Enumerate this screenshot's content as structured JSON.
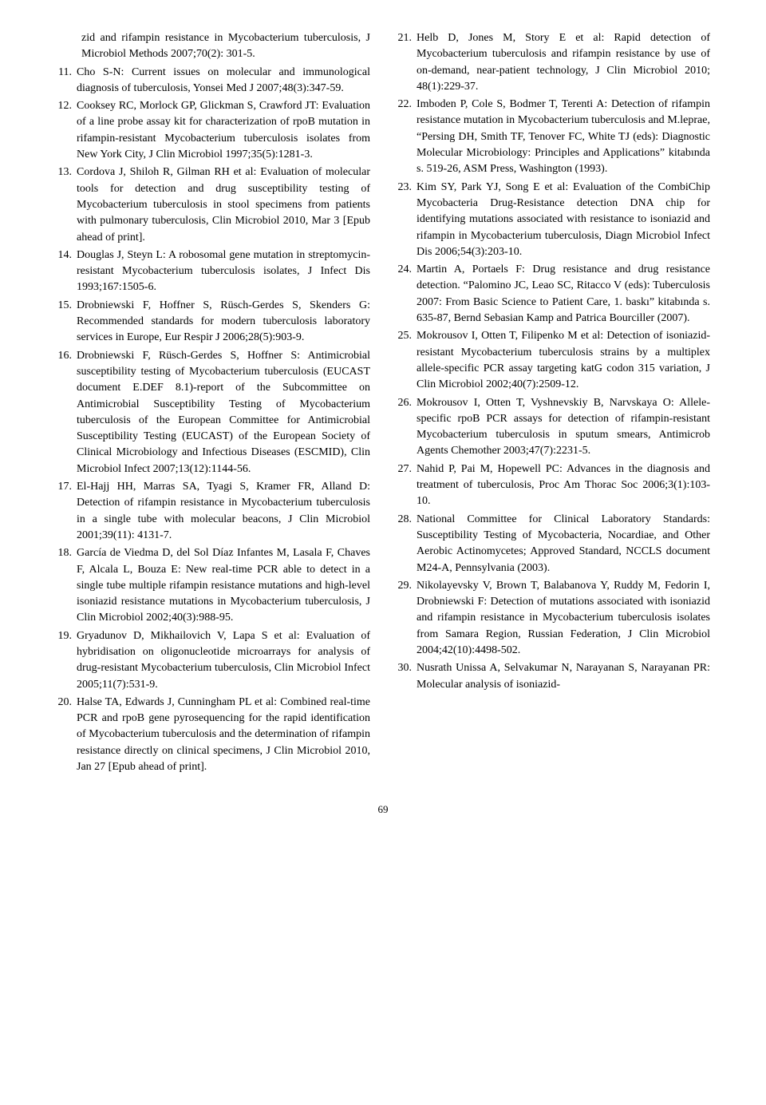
{
  "orphan": "zid and rifampin resistance in Mycobacterium tuberculosis, J Microbiol Methods 2007;70(2): 301-5.",
  "references": [
    {
      "n": "11.",
      "t": "Cho S-N: Current issues on molecular and immunological diagnosis of tuberculosis, Yonsei Med J 2007;48(3):347-59."
    },
    {
      "n": "12.",
      "t": "Cooksey RC, Morlock GP, Glickman S, Crawford JT: Evaluation of a line probe assay kit for characterization of rpoB mutation in rifampin-resistant Mycobacterium tuberculosis isolates from New York City, J Clin Microbiol 1997;35(5):1281-3."
    },
    {
      "n": "13.",
      "t": "Cordova J, Shiloh R, Gilman RH et al: Evaluation of molecular tools for detection and drug susceptibility testing of Mycobacterium tuberculosis in stool specimens from patients with pulmonary tuberculosis, Clin Microbiol 2010, Mar 3 [Epub ahead of print]."
    },
    {
      "n": "14.",
      "t": "Douglas J, Steyn L: A robosomal gene mutation in streptomycin-resistant Mycobacterium tuberculosis isolates, J Infect Dis 1993;167:1505-6."
    },
    {
      "n": "15.",
      "t": "Drobniewski F, Hoffner S, Rüsch-Gerdes S, Skenders G: Recommended standards for modern tuberculosis laboratory services in Europe, Eur Respir J 2006;28(5):903-9."
    },
    {
      "n": "16.",
      "t": "Drobniewski F, Rüsch-Gerdes S, Hoffner S: Antimicrobial susceptibility testing of Mycobacterium tuberculosis (EUCAST document E.DEF 8.1)-report of the Subcommittee on Antimicrobial Susceptibility Testing of Mycobacterium tuberculosis of the European Committee for Antimicrobial Susceptibility Testing (EUCAST) of the European Society of Clinical Microbiology and Infectious Diseases (ESCMID), Clin Microbiol Infect 2007;13(12):1144-56."
    },
    {
      "n": "17.",
      "t": "El-Hajj HH, Marras SA, Tyagi S, Kramer FR, Alland D: Detection of rifampin resistance in Mycobacterium tuberculosis in a single tube with molecular beacons, J Clin Microbiol 2001;39(11): 4131-7."
    },
    {
      "n": "18.",
      "t": "García de Viedma D, del Sol Díaz Infantes M, Lasala F, Chaves F, Alcala L, Bouza E: New real-time PCR able to detect in a single tube multiple rifampin resistance mutations and high-level isoniazid resistance mutations in Mycobacterium tuberculosis, J Clin Microbiol 2002;40(3):988-95."
    },
    {
      "n": "19.",
      "t": "Gryadunov D, Mikhailovich V, Lapa S et al: Evaluation of hybridisation on oligonucleotide microarrays for analysis of drug-resistant Mycobacterium tuberculosis, Clin Microbiol Infect 2005;11(7):531-9."
    },
    {
      "n": "20.",
      "t": "Halse TA, Edwards J, Cunningham PL et al: Combined real-time PCR and rpoB gene pyrosequencing for the rapid identification of Mycobacterium tuberculosis and the determination of rifampin resistance directly on clinical specimens, J Clin Microbiol 2010, Jan 27 [Epub ahead of print]."
    },
    {
      "n": "21.",
      "t": "Helb D, Jones M, Story E et al: Rapid detection of Mycobacterium tuberculosis and rifampin resistance by use of on-demand, near-patient technology, J Clin Microbiol 2010; 48(1):229-37."
    },
    {
      "n": "22.",
      "t": "Imboden P, Cole S, Bodmer T, Terenti A: Detection of rifampin resistance mutation in Mycobacterium tuberculosis and M.leprae, “Persing DH, Smith TF, Tenover FC, White TJ (eds): Diagnostic Molecular Microbiology: Principles and Applications” kitabında s. 519-26, ASM Press, Washington (1993)."
    },
    {
      "n": "23.",
      "t": "Kim SY, Park YJ, Song E et al: Evaluation of the CombiChip Mycobacteria Drug-Resistance detection DNA chip for identifying mutations associated with resistance to isoniazid and rifampin in Mycobacterium tuberculosis, Diagn Microbiol Infect Dis 2006;54(3):203-10."
    },
    {
      "n": "24.",
      "t": "Martin A, Portaels F: Drug resistance and drug resistance detection. “Palomino JC, Leao SC, Ritacco V (eds): Tuberculosis 2007: From Basic Science to Patient Care, 1. baskı” kitabında s. 635-87, Bernd Sebasian Kamp and Patrica Bourciller (2007)."
    },
    {
      "n": "25.",
      "t": "Mokrousov I, Otten T, Filipenko M et al: Detection of isoniazid-resistant Mycobacterium tuberculosis strains by a multiplex allele-specific PCR assay targeting katG codon 315 variation, J Clin Microbiol 2002;40(7):2509-12."
    },
    {
      "n": "26.",
      "t": "Mokrousov I, Otten T, Vyshnevskiy B, Narvskaya O: Allele-specific rpoB PCR assays for detection of rifampin-resistant Mycobacterium tuberculosis in sputum smears, Antimicrob Agents Chemother 2003;47(7):2231-5."
    },
    {
      "n": "27.",
      "t": "Nahid P, Pai M, Hopewell PC: Advances in the diagnosis and treatment of tuberculosis, Proc Am Thorac Soc 2006;3(1):103-10."
    },
    {
      "n": "28.",
      "t": "National Committee for Clinical Laboratory Standards: Susceptibility Testing of Mycobacteria, Nocardiae, and Other Aerobic Actinomycetes; Approved Standard, NCCLS document M24-A, Pennsylvania (2003)."
    },
    {
      "n": "29.",
      "t": "Nikolayevsky V, Brown T, Balabanova Y, Ruddy M, Fedorin I, Drobniewski F: Detection of mutations associated with isoniazid and rifampin resistance in Mycobacterium tuberculosis isolates from Samara Region, Russian Federation, J Clin Microbiol 2004;42(10):4498-502."
    },
    {
      "n": "30.",
      "t": "Nusrath Unissa A, Selvakumar N, Narayanan S, Narayanan PR: Molecular analysis of isoniazid-"
    }
  ],
  "pageNumber": "69"
}
